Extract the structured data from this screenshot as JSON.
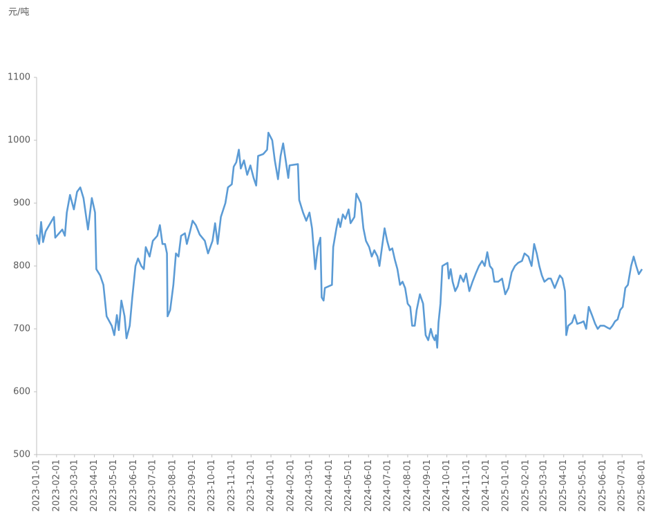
{
  "chart_data": {
    "type": "line",
    "y_label": "元/吨",
    "color": "#5b9bd5",
    "ylim": [
      500,
      1100
    ],
    "yticks": [
      500,
      600,
      700,
      800,
      900,
      1000,
      1100
    ],
    "xlim": [
      "2023-01-01",
      "2025-08-01"
    ],
    "xticks": [
      "2023-01-01",
      "2023-02-01",
      "2023-03-01",
      "2023-04-01",
      "2023-05-01",
      "2023-06-01",
      "2023-07-01",
      "2023-08-01",
      "2023-09-01",
      "2023-10-01",
      "2023-11-01",
      "2023-12-01",
      "2024-01-01",
      "2024-02-01",
      "2024-03-01",
      "2024-04-01",
      "2024-05-01",
      "2024-06-01",
      "2024-07-01",
      "2024-08-01",
      "2024-09-01",
      "2024-10-01",
      "2024-11-01",
      "2024-12-01",
      "2025-01-01",
      "2025-02-01",
      "2025-03-01",
      "2025-04-01",
      "2025-05-01",
      "2025-06-01",
      "2025-07-01",
      "2025-08-01"
    ],
    "x": [
      "2023-01-01",
      "2023-01-05",
      "2023-01-08",
      "2023-01-11",
      "2023-01-15",
      "2023-01-28",
      "2023-01-30",
      "2023-02-10",
      "2023-02-14",
      "2023-02-17",
      "2023-02-22",
      "2023-02-28",
      "2023-03-05",
      "2023-03-10",
      "2023-03-15",
      "2023-03-22",
      "2023-03-28",
      "2023-04-02",
      "2023-04-04",
      "2023-04-10",
      "2023-04-15",
      "2023-04-20",
      "2023-04-28",
      "2023-05-02",
      "2023-05-06",
      "2023-05-09",
      "2023-05-13",
      "2023-05-18",
      "2023-05-21",
      "2023-05-26",
      "2023-05-30",
      "2023-06-04",
      "2023-06-08",
      "2023-06-13",
      "2023-06-17",
      "2023-06-20",
      "2023-06-26",
      "2023-07-01",
      "2023-07-08",
      "2023-07-12",
      "2023-07-16",
      "2023-07-20",
      "2023-07-23",
      "2023-07-24",
      "2023-07-28",
      "2023-08-02",
      "2023-08-06",
      "2023-08-10",
      "2023-08-14",
      "2023-08-20",
      "2023-08-23",
      "2023-08-28",
      "2023-09-01",
      "2023-09-06",
      "2023-09-12",
      "2023-09-20",
      "2023-09-25",
      "2023-10-02",
      "2023-10-06",
      "2023-10-10",
      "2023-10-15",
      "2023-10-22",
      "2023-10-26",
      "2023-11-01",
      "2023-11-04",
      "2023-11-08",
      "2023-11-12",
      "2023-11-15",
      "2023-11-20",
      "2023-11-25",
      "2023-11-30",
      "2023-12-05",
      "2023-12-09",
      "2023-12-12",
      "2023-12-20",
      "2023-12-26",
      "2023-12-28",
      "2024-01-03",
      "2024-01-07",
      "2024-01-12",
      "2024-01-16",
      "2024-01-20",
      "2024-01-24",
      "2024-01-28",
      "2024-01-30",
      "2024-02-12",
      "2024-02-14",
      "2024-02-20",
      "2024-02-25",
      "2024-03-01",
      "2024-03-05",
      "2024-03-10",
      "2024-03-14",
      "2024-03-18",
      "2024-03-20",
      "2024-03-23",
      "2024-03-25",
      "2024-04-05",
      "2024-04-07",
      "2024-04-12",
      "2024-04-15",
      "2024-04-18",
      "2024-04-22",
      "2024-04-26",
      "2024-05-01",
      "2024-05-04",
      "2024-05-10",
      "2024-05-13",
      "2024-05-20",
      "2024-05-24",
      "2024-05-28",
      "2024-06-02",
      "2024-06-06",
      "2024-06-10",
      "2024-06-15",
      "2024-06-18",
      "2024-06-22",
      "2024-06-26",
      "2024-06-30",
      "2024-07-04",
      "2024-07-08",
      "2024-07-12",
      "2024-07-16",
      "2024-07-20",
      "2024-07-24",
      "2024-07-28",
      "2024-08-01",
      "2024-08-05",
      "2024-08-08",
      "2024-08-12",
      "2024-08-15",
      "2024-08-20",
      "2024-08-25",
      "2024-08-29",
      "2024-09-02",
      "2024-09-06",
      "2024-09-09",
      "2024-09-12",
      "2024-09-14",
      "2024-09-16",
      "2024-09-18",
      "2024-09-21",
      "2024-09-24",
      "2024-10-02",
      "2024-10-04",
      "2024-10-07",
      "2024-10-10",
      "2024-10-14",
      "2024-10-18",
      "2024-10-22",
      "2024-10-27",
      "2024-10-31",
      "2024-11-05",
      "2024-11-10",
      "2024-11-15",
      "2024-11-20",
      "2024-11-25",
      "2024-11-29",
      "2024-12-03",
      "2024-12-07",
      "2024-12-11",
      "2024-12-14",
      "2024-12-20",
      "2024-12-26",
      "2024-12-31",
      "2025-01-05",
      "2025-01-10",
      "2025-01-15",
      "2025-01-20",
      "2025-01-26",
      "2025-01-30",
      "2025-02-05",
      "2025-02-10",
      "2025-02-14",
      "2025-02-18",
      "2025-02-22",
      "2025-02-26",
      "2025-03-02",
      "2025-03-08",
      "2025-03-12",
      "2025-03-18",
      "2025-03-22",
      "2025-03-26",
      "2025-03-30",
      "2025-04-03",
      "2025-04-05",
      "2025-04-08",
      "2025-04-14",
      "2025-04-18",
      "2025-04-22",
      "2025-04-28",
      "2025-05-02",
      "2025-05-06",
      "2025-05-10",
      "2025-05-15",
      "2025-05-20",
      "2025-05-24",
      "2025-05-28",
      "2025-06-03",
      "2025-06-08",
      "2025-06-12",
      "2025-06-16",
      "2025-06-20",
      "2025-06-24",
      "2025-06-28",
      "2025-07-02",
      "2025-07-06",
      "2025-07-10",
      "2025-07-15",
      "2025-07-19",
      "2025-07-23",
      "2025-07-27",
      "2025-08-01"
    ],
    "values": [
      850,
      835,
      870,
      838,
      855,
      878,
      845,
      858,
      848,
      885,
      913,
      890,
      918,
      925,
      908,
      858,
      908,
      885,
      795,
      785,
      770,
      720,
      705,
      690,
      722,
      698,
      745,
      720,
      685,
      705,
      750,
      800,
      812,
      800,
      795,
      830,
      815,
      840,
      848,
      865,
      835,
      835,
      820,
      720,
      730,
      770,
      820,
      815,
      848,
      852,
      835,
      855,
      872,
      865,
      850,
      840,
      820,
      840,
      868,
      835,
      878,
      900,
      925,
      930,
      958,
      965,
      985,
      955,
      968,
      945,
      960,
      940,
      928,
      975,
      978,
      985,
      1012,
      1000,
      968,
      938,
      975,
      995,
      968,
      940,
      960,
      962,
      905,
      885,
      872,
      885,
      860,
      795,
      830,
      845,
      750,
      745,
      765,
      770,
      830,
      860,
      875,
      862,
      882,
      875,
      890,
      868,
      878,
      915,
      900,
      860,
      840,
      830,
      815,
      825,
      815,
      800,
      830,
      860,
      840,
      825,
      828,
      810,
      795,
      770,
      775,
      765,
      740,
      735,
      705,
      705,
      730,
      755,
      740,
      690,
      682,
      700,
      688,
      682,
      690,
      670,
      710,
      740,
      800,
      805,
      780,
      795,
      775,
      760,
      768,
      785,
      775,
      788,
      760,
      775,
      788,
      800,
      808,
      800,
      822,
      800,
      795,
      775,
      775,
      780,
      755,
      765,
      790,
      800,
      805,
      808,
      820,
      815,
      800,
      835,
      820,
      800,
      785,
      775,
      780,
      780,
      765,
      775,
      785,
      780,
      760,
      690,
      705,
      710,
      722,
      708,
      710,
      712,
      700,
      735,
      722,
      708,
      700,
      705,
      705,
      702,
      700,
      705,
      712,
      715,
      730,
      735,
      765,
      770,
      800,
      815,
      800,
      787,
      795
    ]
  }
}
